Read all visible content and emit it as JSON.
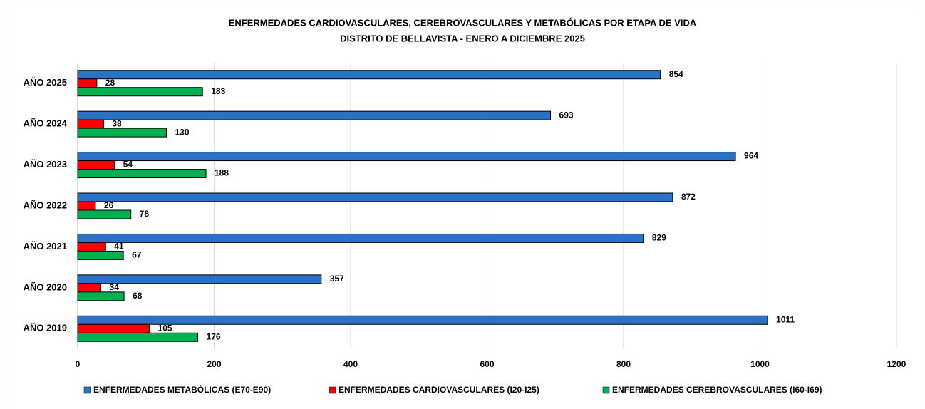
{
  "chart_data": {
    "type": "hbar",
    "title": "ENFERMEDADES CARDIOVASCULARES, CEREBROVASCULARES Y METABÓLICAS POR ETAPA DE VIDA",
    "subtitle": "DISTRITO DE BELLAVISTA - ENERO A DICIEMBRE 2025",
    "categories": [
      "AÑO 2025",
      "AÑO 2024",
      "AÑO 2023",
      "AÑO 2022",
      "AÑO 2021",
      "AÑO 2020",
      "AÑO 2019"
    ],
    "series": [
      {
        "name": "ENFERMEDADES METABÓLICAS (E70-E90)",
        "color": "#2a72c8",
        "values": [
          854,
          693,
          964,
          872,
          829,
          357,
          1011
        ]
      },
      {
        "name": "ENFERMEDADES CARDIOVASCULARES (I20-I25)",
        "color": "#ff0000",
        "values": [
          28,
          38,
          54,
          26,
          41,
          34,
          105
        ]
      },
      {
        "name": "ENFERMEDADES CEREBROVASCULARES (I60-I69)",
        "color": "#00b050",
        "values": [
          183,
          130,
          188,
          78,
          67,
          68,
          176
        ]
      }
    ],
    "xlim": [
      0,
      1200
    ],
    "xticks": [
      0,
      200,
      400,
      600,
      800,
      1000,
      1200
    ],
    "grid": true,
    "legend": "bottom"
  }
}
